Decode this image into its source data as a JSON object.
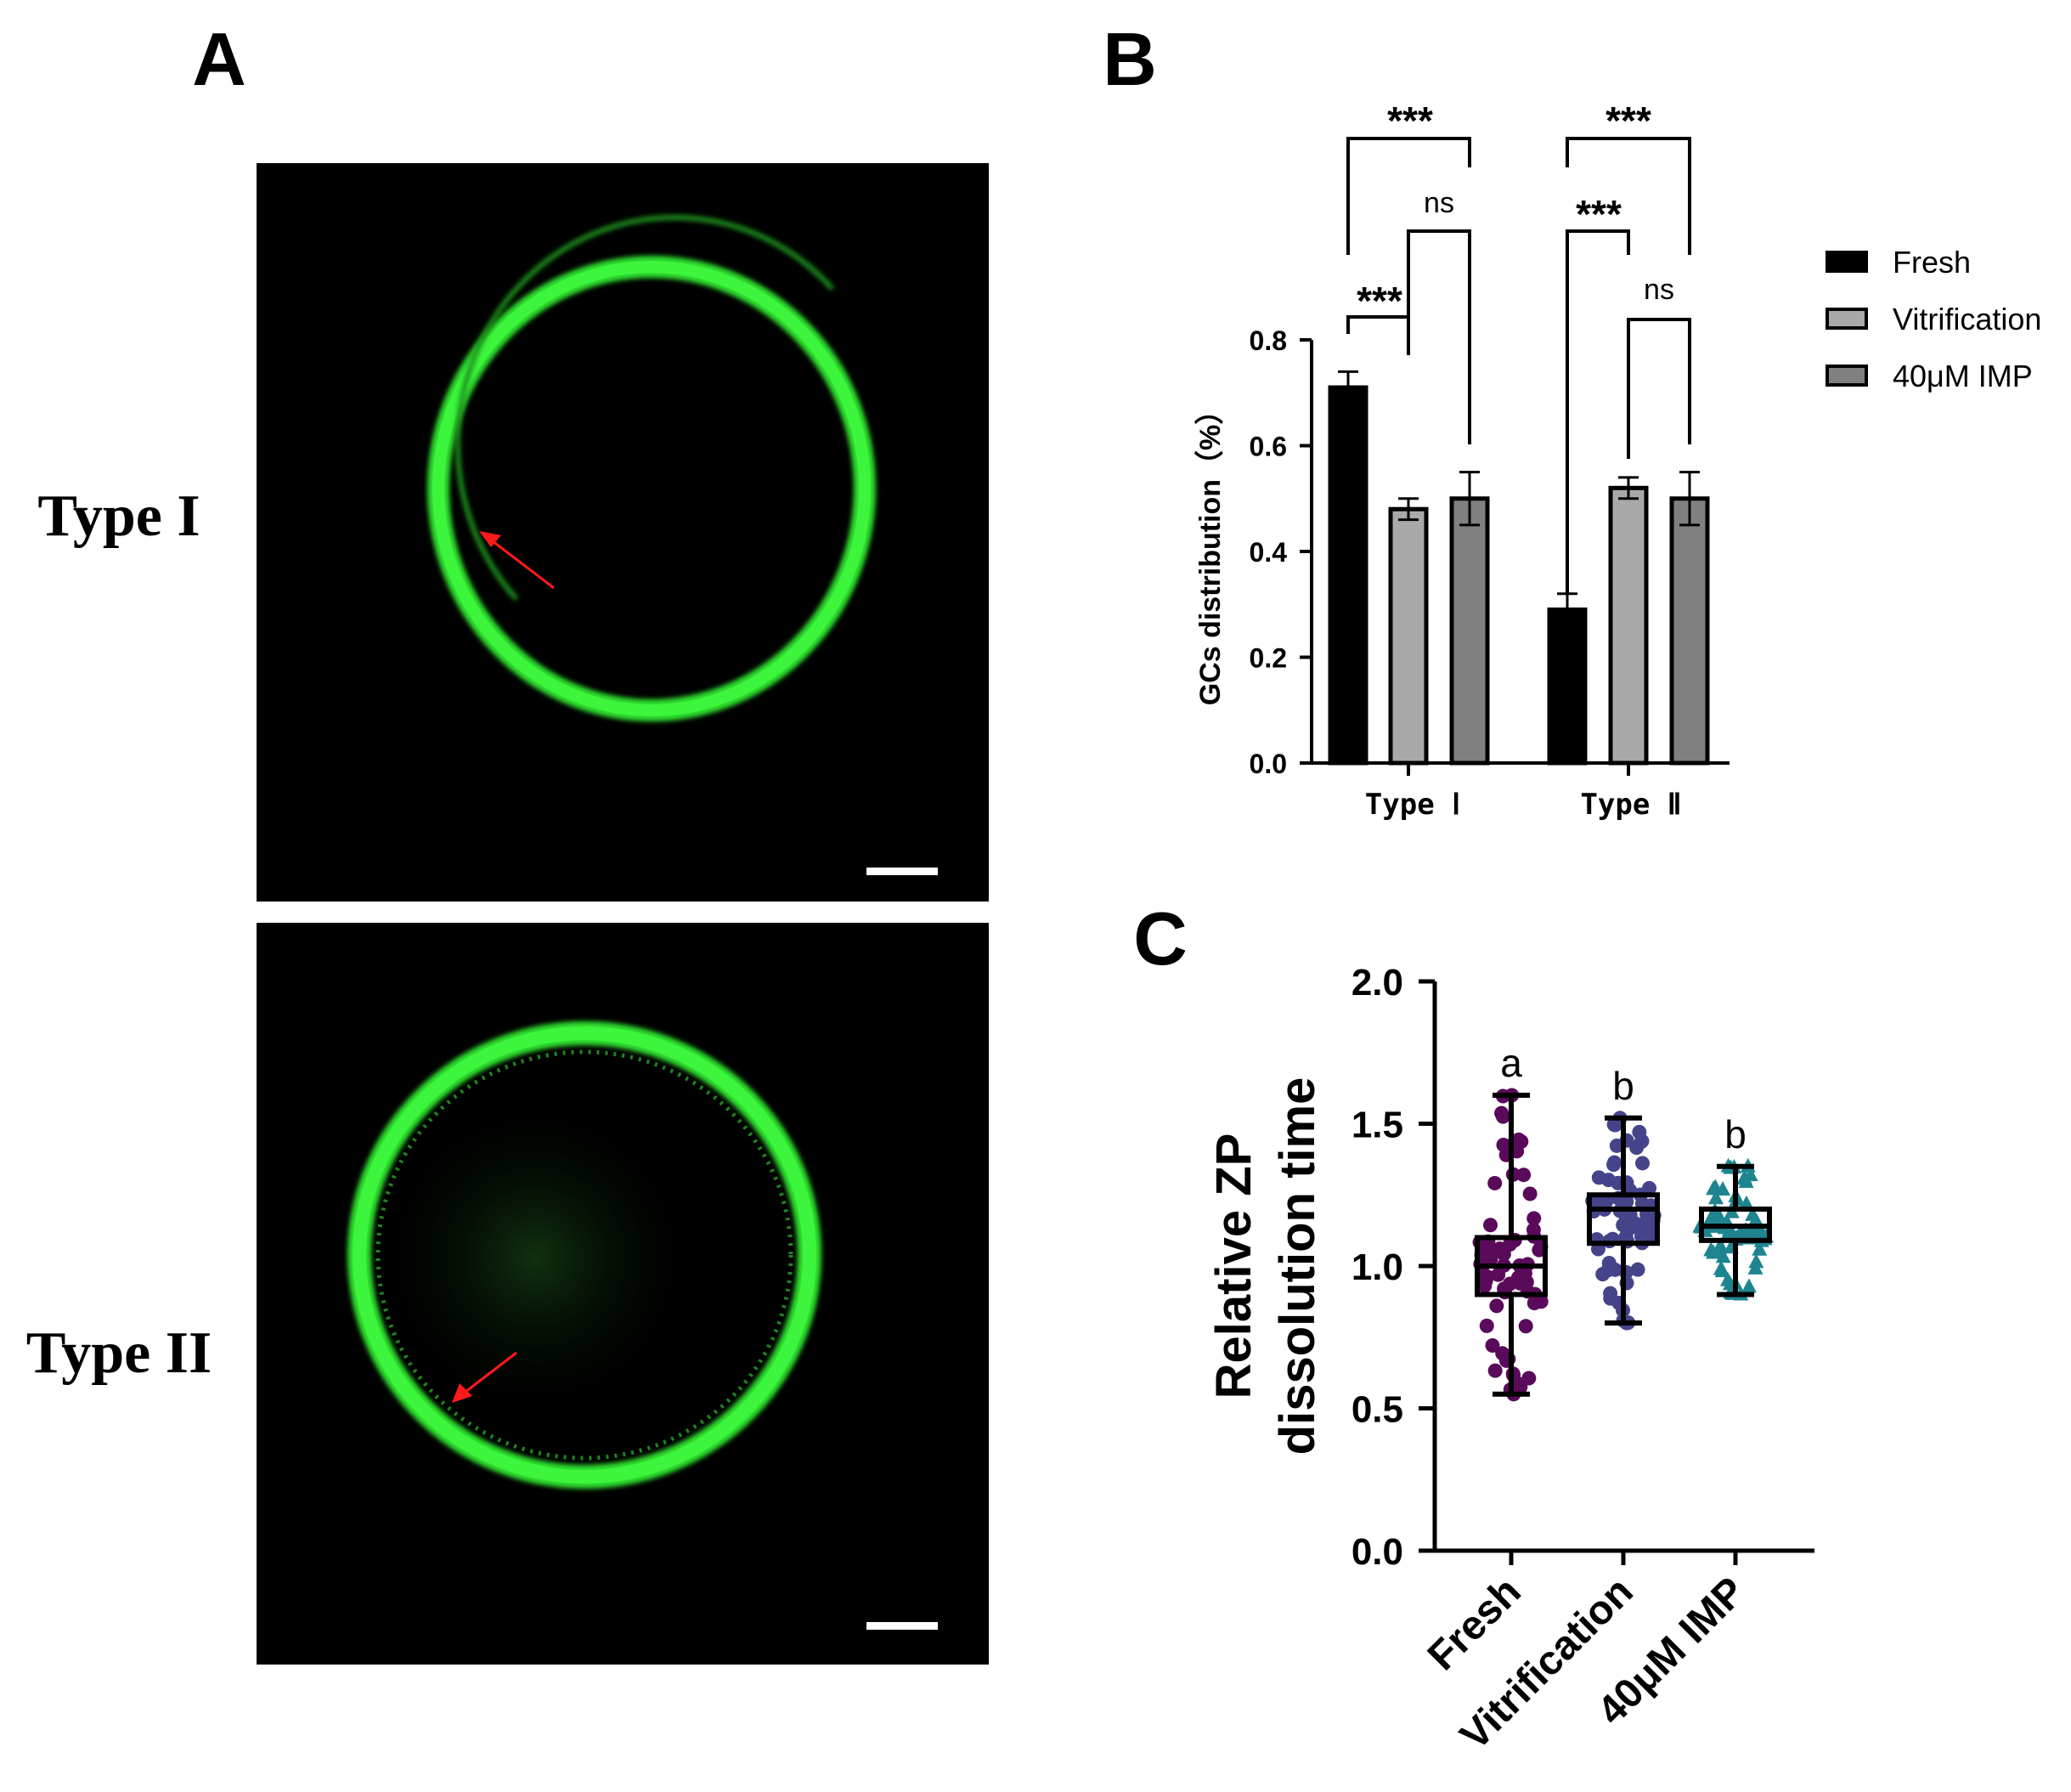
{
  "panels": {
    "A": {
      "label": "A",
      "rows": [
        "Type I",
        "Type II"
      ]
    },
    "B": {
      "label": "B"
    },
    "C": {
      "label": "C"
    }
  },
  "chart_data": [
    {
      "panel": "B",
      "type": "bar",
      "ylabel": "GCs distribution（%）",
      "ylim": [
        0,
        0.8
      ],
      "yticks": [
        "0.0",
        "0.2",
        "0.4",
        "0.6",
        "0.8"
      ],
      "categories": [
        "Type Ⅰ",
        "Type Ⅱ"
      ],
      "legend_position": "right",
      "series": [
        {
          "name": "Fresh",
          "color": "#000000",
          "values": [
            0.71,
            0.29
          ],
          "errors": [
            0.03,
            0.03
          ]
        },
        {
          "name": "Vitrification",
          "color": "#a9a9a9",
          "values": [
            0.48,
            0.52
          ],
          "errors": [
            0.02,
            0.02
          ]
        },
        {
          "name": "40μM IMP",
          "color": "#808080",
          "values": [
            0.5,
            0.5
          ],
          "errors": [
            0.05,
            0.05
          ]
        }
      ],
      "significance": [
        {
          "category": 0,
          "from": "Fresh",
          "to": "Vitrification",
          "label": "***"
        },
        {
          "category": 0,
          "from": "Vitrification",
          "to": "40μM IMP",
          "label": "ns"
        },
        {
          "category": 0,
          "from": "Fresh",
          "to": "40μM IMP",
          "label": "***"
        },
        {
          "category": 1,
          "from": "Fresh",
          "to": "Vitrification",
          "label": "***"
        },
        {
          "category": 1,
          "from": "Vitrification",
          "to": "40μM IMP",
          "label": "ns"
        },
        {
          "category": 1,
          "from": "Fresh",
          "to": "40μM IMP",
          "label": "***"
        }
      ]
    },
    {
      "panel": "C",
      "type": "scatter",
      "subtype": "box-and-points",
      "ylabel_lines": [
        "Relative ZP",
        "dissolution time"
      ],
      "ylim": [
        0,
        2.0
      ],
      "yticks": [
        "0.0",
        "0.5",
        "1.0",
        "1.5",
        "2.0"
      ],
      "categories": [
        "Fresh",
        "Vitrification",
        "40μM IMP"
      ],
      "series": [
        {
          "name": "Fresh",
          "color": "#5a0a5a",
          "marker": "circle",
          "letter": "a",
          "min": 0.55,
          "q1": 0.9,
          "median": 1.0,
          "q3": 1.1,
          "max": 1.6
        },
        {
          "name": "Vitrification",
          "color": "#45448a",
          "marker": "circle",
          "letter": "b",
          "min": 0.8,
          "q1": 1.08,
          "median": 1.2,
          "q3": 1.25,
          "max": 1.52
        },
        {
          "name": "40μM IMP",
          "color": "#1e8590",
          "marker": "triangle",
          "letter": "b",
          "min": 0.9,
          "q1": 1.09,
          "median": 1.14,
          "q3": 1.2,
          "max": 1.35
        }
      ]
    }
  ]
}
